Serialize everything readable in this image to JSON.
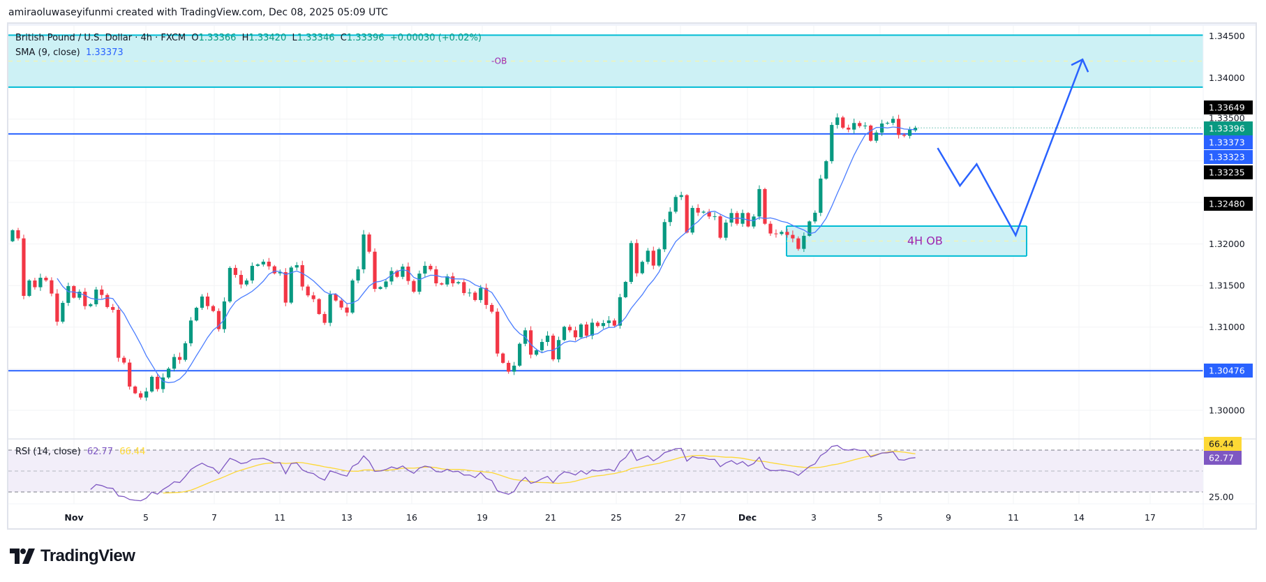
{
  "credit": "amiraoluwaseyifunmi created with TradingView.com, Dec 08, 2025 05:09 UTC",
  "legend": {
    "symbol": "British Pound / U.S. Dollar · 4h · FXCM",
    "o_label": "O",
    "o": "1.33366",
    "h_label": "H",
    "h": "1.33420",
    "l_label": "L",
    "l": "1.33346",
    "c_label": "C",
    "c": "1.33396",
    "change": "+0.00030 (+0.02%)",
    "sma_label": "SMA (9, close)",
    "sma_value": "1.33373"
  },
  "rsi_legend": {
    "label": "RSI (14, close)",
    "rsi": "62.77",
    "rsi_ma": "66.44"
  },
  "colors": {
    "up": "#089981",
    "down": "#f23645",
    "sma": "#2962ff",
    "hline": "#2962ff",
    "ob_border": "#00bcd4",
    "ob_fill": "#cdf1f5",
    "ob_text": "#9c27b0",
    "rsi": "#7e57c2",
    "rsi_ma": "#fdd835"
  },
  "price_axis": {
    "ticks": [
      "1.34500",
      "1.34000",
      "1.33500",
      "1.32000",
      "1.31500",
      "1.31000",
      "1.30000"
    ],
    "labels": [
      {
        "text": "1.33649",
        "bg": "#000000",
        "fg": "#ffffff"
      },
      {
        "text": "1.33396",
        "bg": "#089981",
        "fg": "#ffffff"
      },
      {
        "text": "1.33373",
        "bg": "#2962ff",
        "fg": "#ffffff"
      },
      {
        "text": "1.33323",
        "bg": "#2962ff",
        "fg": "#ffffff"
      },
      {
        "text": "1.33235",
        "bg": "#000000",
        "fg": "#ffffff"
      },
      {
        "text": "1.32480",
        "bg": "#000000",
        "fg": "#ffffff"
      },
      {
        "text": "1.30476",
        "bg": "#2962ff",
        "fg": "#ffffff"
      }
    ]
  },
  "rsi_axis": {
    "ticks": [
      "25.00"
    ],
    "labels": [
      {
        "text": "66.44",
        "bg": "#fdd835",
        "fg": "#131722"
      },
      {
        "text": "62.77",
        "bg": "#7e57c2",
        "fg": "#ffffff"
      }
    ],
    "bands": [
      70,
      50,
      30
    ]
  },
  "time_axis": [
    "Nov",
    "5",
    "7",
    "11",
    "13",
    "16",
    "19",
    "21",
    "25",
    "27",
    "Dec",
    "3",
    "5",
    "9",
    "11",
    "14",
    "17"
  ],
  "horizontal_lines": [
    1.33323,
    1.30476
  ],
  "zones": [
    {
      "label": "-OB",
      "top": 1.3451,
      "bottom": 1.33885
    },
    {
      "label": "4H OB",
      "top": 1.32215,
      "bottom": 1.31855
    }
  ],
  "projection_path": [
    [
      166,
      1.33153
    ],
    [
      170,
      1.327
    ],
    [
      173,
      1.3296
    ],
    [
      180,
      1.32104
    ],
    [
      192,
      1.34218
    ]
  ],
  "chart_data": {
    "type": "candlestick",
    "first_open": 1.32033,
    "closes": [
      1.32165,
      1.32067,
      1.31376,
      1.31561,
      1.3148,
      1.31594,
      1.31563,
      1.31404,
      1.31066,
      1.31292,
      1.31494,
      1.31354,
      1.31426,
      1.31253,
      1.31275,
      1.31452,
      1.31387,
      1.31242,
      1.31208,
      1.30632,
      1.30574,
      1.30286,
      1.30205,
      1.30154,
      1.30227,
      1.30403,
      1.30255,
      1.30395,
      1.30501,
      1.30641,
      1.30607,
      1.30806,
      1.3108,
      1.31233,
      1.31368,
      1.31253,
      1.31194,
      1.30976,
      1.31309,
      1.31712,
      1.31628,
      1.31513,
      1.31561,
      1.31737,
      1.31754,
      1.31787,
      1.31731,
      1.31647,
      1.31661,
      1.31295,
      1.31717,
      1.31745,
      1.31488,
      1.31382,
      1.31337,
      1.31158,
      1.31052,
      1.31393,
      1.3132,
      1.31236,
      1.31175,
      1.31561,
      1.31695,
      1.32114,
      1.31907,
      1.3146,
      1.31482,
      1.31549,
      1.31675,
      1.31605,
      1.31728,
      1.31555,
      1.31426,
      1.31644,
      1.31737,
      1.31695,
      1.31527,
      1.31513,
      1.31611,
      1.31527,
      1.31541,
      1.3141,
      1.31415,
      1.31326,
      1.31471,
      1.31267,
      1.31186,
      1.30683,
      1.30571,
      1.30465,
      1.30537,
      1.308,
      1.30962,
      1.30669,
      1.30722,
      1.30822,
      1.30898,
      1.30613,
      1.30845,
      1.31004,
      1.30962,
      1.30878,
      1.31032,
      1.30898,
      1.31054,
      1.31013,
      1.31049,
      1.3108,
      1.31018,
      1.3136,
      1.31544,
      1.32011,
      1.31648,
      1.31785,
      1.31919,
      1.3174,
      1.31936,
      1.32263,
      1.32388,
      1.32565,
      1.32587,
      1.32137,
      1.32433,
      1.32377,
      1.32388,
      1.3233,
      1.32333,
      1.32075,
      1.32257,
      1.32372,
      1.32243,
      1.32372,
      1.3221,
      1.3233,
      1.3266,
      1.32243,
      1.32126,
      1.3212,
      1.32145,
      1.32109,
      1.32067,
      1.31941,
      1.32098,
      1.32271,
      1.32375,
      1.32786,
      1.32995,
      1.33431,
      1.33521,
      1.33398,
      1.33375,
      1.33454,
      1.33417,
      1.33423,
      1.33241,
      1.33339,
      1.33448,
      1.33456,
      1.33504,
      1.33311,
      1.333,
      1.33373,
      1.33396
    ],
    "last_bar": {
      "o": 1.33366,
      "h": 1.3342,
      "l": 1.33346,
      "c": 1.33396
    },
    "ylim": [
      1.297,
      1.3465
    ],
    "indicators": [
      "SMA 9",
      "RSI 14"
    ]
  }
}
